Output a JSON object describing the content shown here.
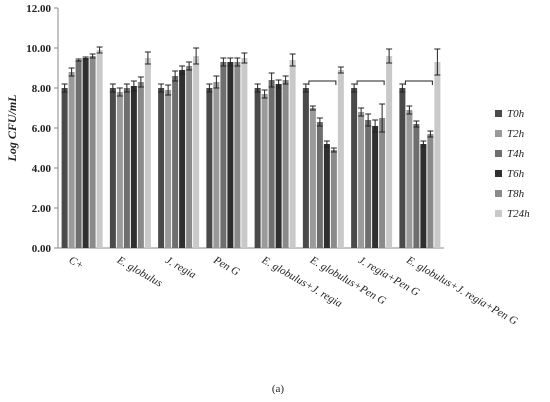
{
  "chart_data": {
    "type": "bar",
    "title": "",
    "xlabel": "",
    "ylabel": "Log CFU/mL",
    "ylim": [
      0,
      12
    ],
    "yticks": [
      "0.00",
      "2.00",
      "4.00",
      "6.00",
      "8.00",
      "10.00",
      "12.00"
    ],
    "grid": false,
    "legend_position": "right",
    "caption": "(a)",
    "categories": [
      "C+",
      "E. globulus",
      "J. regia",
      "Pen G",
      "E. globulus+J. regia",
      "E. globulus+Pen G",
      "J. regia+Pen G",
      "E. globulus+J. regia+Pen G"
    ],
    "series": [
      {
        "name": "T0h",
        "color": "#4a4a4a",
        "values": [
          8.0,
          8.0,
          8.0,
          8.0,
          8.0,
          8.0,
          8.0,
          8.0
        ],
        "errors": [
          0.2,
          0.2,
          0.2,
          0.2,
          0.2,
          0.2,
          0.2,
          0.2
        ]
      },
      {
        "name": "T2h",
        "color": "#9a9a9a",
        "values": [
          8.8,
          7.8,
          7.9,
          8.3,
          7.7,
          7.0,
          6.8,
          6.9
        ],
        "errors": [
          0.2,
          0.2,
          0.25,
          0.3,
          0.2,
          0.1,
          0.2,
          0.2
        ]
      },
      {
        "name": "T4h",
        "color": "#6e6e6e",
        "values": [
          9.4,
          8.0,
          8.6,
          9.3,
          8.4,
          6.3,
          6.4,
          6.2
        ],
        "errors": [
          0.05,
          0.2,
          0.25,
          0.2,
          0.35,
          0.2,
          0.3,
          0.15
        ]
      },
      {
        "name": "T6h",
        "color": "#2f2f2f",
        "values": [
          9.5,
          8.1,
          8.9,
          9.3,
          8.2,
          5.2,
          6.1,
          5.2
        ],
        "errors": [
          0.05,
          0.25,
          0.2,
          0.2,
          0.2,
          0.15,
          0.3,
          0.15
        ]
      },
      {
        "name": "T8h",
        "color": "#8a8a8a",
        "values": [
          9.6,
          8.3,
          9.1,
          9.3,
          8.4,
          4.9,
          6.5,
          5.7
        ],
        "errors": [
          0.1,
          0.25,
          0.2,
          0.2,
          0.2,
          0.1,
          0.7,
          0.15
        ]
      },
      {
        "name": "T24h",
        "color": "#c9c9c9",
        "values": [
          9.9,
          9.5,
          9.6,
          9.5,
          9.4,
          8.9,
          9.6,
          9.3
        ],
        "errors": [
          0.15,
          0.3,
          0.4,
          0.25,
          0.3,
          0.15,
          0.35,
          0.65
        ]
      }
    ],
    "brackets": [
      {
        "category": "E. globulus+Pen G",
        "from_series": "T0h",
        "to_series": "T24h"
      },
      {
        "category": "J. regia+Pen G",
        "from_series": "T0h",
        "to_series": "T24h"
      },
      {
        "category": "E. globulus+J. regia+Pen G",
        "from_series": "T0h",
        "to_series": "T24h"
      }
    ]
  }
}
